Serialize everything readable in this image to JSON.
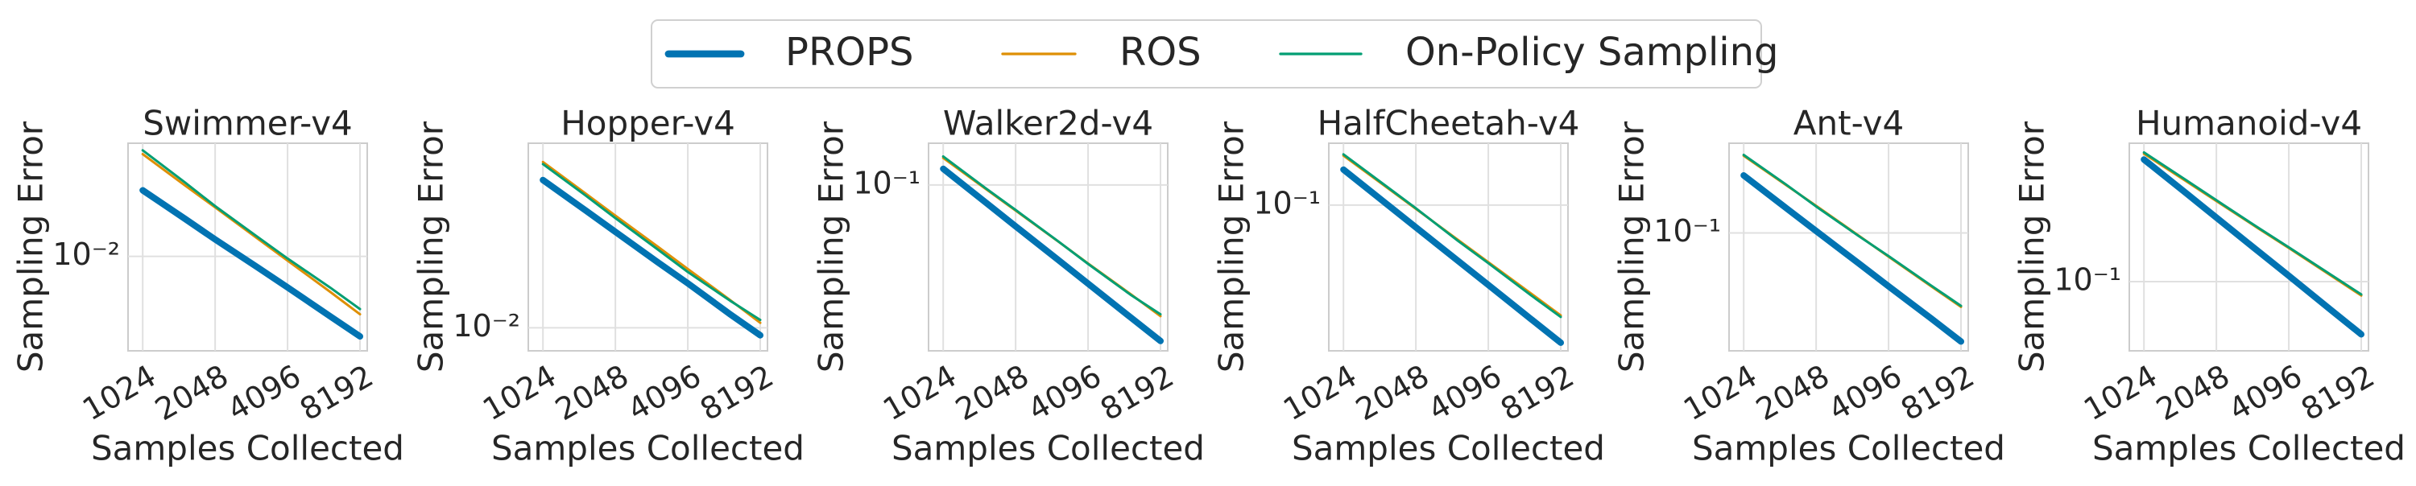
{
  "chart_data": [
    {
      "type": "line",
      "title": "Swimmer-v4",
      "x_label": "Samples Collected",
      "y_label": "Sampling Error",
      "log_x": true,
      "log_y": true,
      "grid": true,
      "x": [
        1024,
        1536,
        2048,
        3072,
        4096,
        6144,
        8192
      ],
      "xlim": [
        890,
        8780
      ],
      "xticks": [
        1024,
        2048,
        4096,
        8192
      ],
      "ylim": [
        0.004,
        0.03
      ],
      "yticks": [
        {
          "value": 0.01,
          "label": "10⁻²"
        }
      ],
      "series": [
        {
          "name": "PROPS",
          "color": "#0173b2",
          "line_width": 8,
          "values": [
            0.019,
            0.0144,
            0.0118,
            0.009,
            0.0074,
            0.0056,
            0.0046
          ]
        },
        {
          "name": "ROS",
          "color": "#de8f05",
          "line_width": 3,
          "values": [
            0.027,
            0.0199,
            0.0161,
            0.0119,
            0.0096,
            0.0071,
            0.0057
          ]
        },
        {
          "name": "On-Policy Sampling",
          "color": "#029e73",
          "line_width": 3,
          "values": [
            0.028,
            0.0205,
            0.0163,
            0.0121,
            0.0098,
            0.0074,
            0.006
          ]
        }
      ]
    },
    {
      "type": "line",
      "title": "Hopper-v4",
      "x_label": "Samples Collected",
      "y_label": "Sampling Error",
      "log_x": true,
      "log_y": true,
      "grid": true,
      "x": [
        1024,
        1536,
        2048,
        3072,
        4096,
        6144,
        8192
      ],
      "xlim": [
        890,
        8780
      ],
      "xticks": [
        1024,
        2048,
        4096,
        8192
      ],
      "ylim": [
        0.008,
        0.06
      ],
      "yticks": [
        {
          "value": 0.01,
          "label": "10⁻²"
        }
      ],
      "series": [
        {
          "name": "PROPS",
          "color": "#0173b2",
          "line_width": 8,
          "values": [
            0.042,
            0.0313,
            0.0254,
            0.0189,
            0.0154,
            0.0114,
            0.0093
          ]
        },
        {
          "name": "ROS",
          "color": "#de8f05",
          "line_width": 3,
          "values": [
            0.05,
            0.0369,
            0.0297,
            0.022,
            0.0177,
            0.0131,
            0.0105
          ]
        },
        {
          "name": "On-Policy Sampling",
          "color": "#029e73",
          "line_width": 3,
          "values": [
            0.049,
            0.0362,
            0.029,
            0.0214,
            0.0172,
            0.013,
            0.0108
          ]
        }
      ]
    },
    {
      "type": "line",
      "title": "Walker2d-v4",
      "x_label": "Samples Collected",
      "y_label": "Sampling Error",
      "log_x": true,
      "log_y": true,
      "grid": true,
      "x": [
        1024,
        1536,
        2048,
        3072,
        4096,
        6144,
        8192
      ],
      "xlim": [
        890,
        8780
      ],
      "xticks": [
        1024,
        2048,
        4096,
        8192
      ],
      "ylim": [
        0.02,
        0.15
      ],
      "yticks": [
        {
          "value": 0.1,
          "label": "10⁻¹"
        }
      ],
      "series": [
        {
          "name": "PROPS",
          "color": "#0173b2",
          "line_width": 8,
          "values": [
            0.117,
            0.0845,
            0.067,
            0.0484,
            0.0384,
            0.0277,
            0.022
          ]
        },
        {
          "name": "ROS",
          "color": "#de8f05",
          "line_width": 3,
          "values": [
            0.13,
            0.0963,
            0.078,
            0.0579,
            0.0467,
            0.0347,
            0.028
          ]
        },
        {
          "name": "On-Policy Sampling",
          "color": "#029e73",
          "line_width": 3,
          "values": [
            0.132,
            0.097,
            0.0785,
            0.058,
            0.0465,
            0.0345,
            0.0285
          ]
        }
      ]
    },
    {
      "type": "line",
      "title": "HalfCheetah-v4",
      "x_label": "Samples Collected",
      "y_label": "Sampling Error",
      "log_x": true,
      "log_y": true,
      "grid": true,
      "x": [
        1024,
        1536,
        2048,
        3072,
        4096,
        6144,
        8192
      ],
      "xlim": [
        890,
        8780
      ],
      "xticks": [
        1024,
        2048,
        4096,
        8192
      ],
      "ylim": [
        0.025,
        0.18
      ],
      "yticks": [
        {
          "value": 0.1,
          "label": "10⁻¹"
        }
      ],
      "series": [
        {
          "name": "PROPS",
          "color": "#0173b2",
          "line_width": 8,
          "values": [
            0.14,
            0.1016,
            0.0809,
            0.0587,
            0.0468,
            0.0339,
            0.027
          ]
        },
        {
          "name": "ROS",
          "color": "#de8f05",
          "line_width": 3,
          "values": [
            0.16,
            0.119,
            0.0965,
            0.0717,
            0.0581,
            0.0432,
            0.035
          ]
        },
        {
          "name": "On-Policy Sampling",
          "color": "#029e73",
          "line_width": 3,
          "values": [
            0.162,
            0.12,
            0.097,
            0.071,
            0.0575,
            0.0425,
            0.0345
          ]
        }
      ]
    },
    {
      "type": "line",
      "title": "Ant-v4",
      "x_label": "Samples Collected",
      "y_label": "Sampling Error",
      "log_x": true,
      "log_y": true,
      "grid": true,
      "x": [
        1024,
        1536,
        2048,
        3072,
        4096,
        6144,
        8192
      ],
      "xlim": [
        890,
        8780
      ],
      "xticks": [
        1024,
        2048,
        4096,
        8192
      ],
      "ylim": [
        0.03,
        0.25
      ],
      "yticks": [
        {
          "value": 0.1,
          "label": "10⁻¹"
        }
      ],
      "series": [
        {
          "name": "PROPS",
          "color": "#0173b2",
          "line_width": 8,
          "values": [
            0.18,
            0.129,
            0.102,
            0.0734,
            0.058,
            0.0418,
            0.033
          ]
        },
        {
          "name": "ROS",
          "color": "#de8f05",
          "line_width": 3,
          "values": [
            0.22,
            0.163,
            0.132,
            0.0975,
            0.0785,
            0.0581,
            0.047
          ]
        },
        {
          "name": "On-Policy Sampling",
          "color": "#029e73",
          "line_width": 3,
          "values": [
            0.222,
            0.164,
            0.131,
            0.097,
            0.079,
            0.0585,
            0.0475
          ]
        }
      ]
    },
    {
      "type": "line",
      "title": "Humanoid-v4",
      "x_label": "Samples Collected",
      "y_label": "Sampling Error",
      "log_x": true,
      "log_y": true,
      "grid": true,
      "x": [
        1024,
        1536,
        2048,
        3072,
        4096,
        6144,
        8192
      ],
      "xlim": [
        890,
        8780
      ],
      "xticks": [
        1024,
        2048,
        4096,
        8192
      ],
      "ylim": [
        0.05,
        0.4
      ],
      "yticks": [
        {
          "value": 0.1,
          "label": "10⁻¹"
        }
      ],
      "series": [
        {
          "name": "PROPS",
          "color": "#0173b2",
          "line_width": 8,
          "values": [
            0.34,
            0.242,
            0.19,
            0.135,
            0.106,
            0.0751,
            0.059
          ]
        },
        {
          "name": "ROS",
          "color": "#de8f05",
          "line_width": 3,
          "values": [
            0.36,
            0.273,
            0.224,
            0.17,
            0.14,
            0.106,
            0.087
          ]
        },
        {
          "name": "On-Policy Sampling",
          "color": "#029e73",
          "line_width": 3,
          "values": [
            0.365,
            0.276,
            0.226,
            0.171,
            0.141,
            0.107,
            0.088
          ]
        }
      ]
    }
  ]
}
